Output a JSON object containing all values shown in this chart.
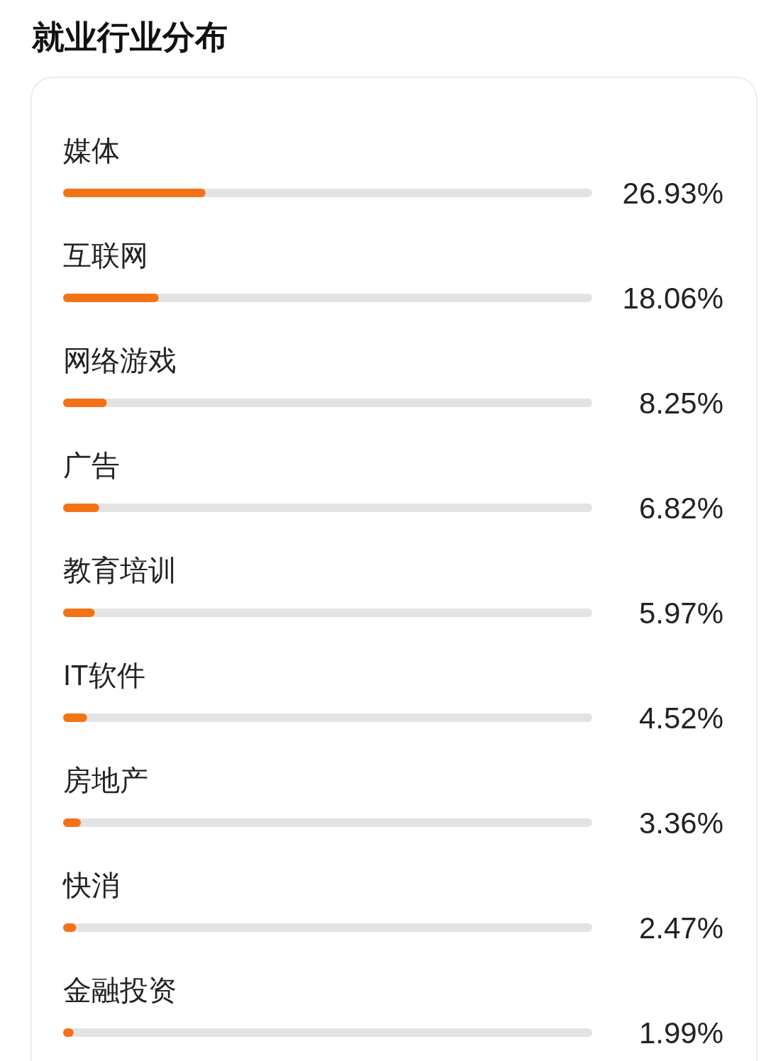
{
  "chart_data": {
    "type": "bar",
    "orientation": "horizontal",
    "title": "就业行业分布",
    "categories": [
      "媒体",
      "互联网",
      "网络游戏",
      "广告",
      "教育培训",
      "IT软件",
      "房地产",
      "快消",
      "金融投资"
    ],
    "values": [
      26.93,
      18.06,
      8.25,
      6.82,
      5.97,
      4.52,
      3.36,
      2.47,
      1.99
    ],
    "value_labels": [
      "26.93%",
      "18.06%",
      "8.25%",
      "6.82%",
      "5.97%",
      "4.52%",
      "3.36%",
      "2.47%",
      "1.99%"
    ],
    "color": "#f47216",
    "xlim": [
      0,
      100
    ]
  }
}
